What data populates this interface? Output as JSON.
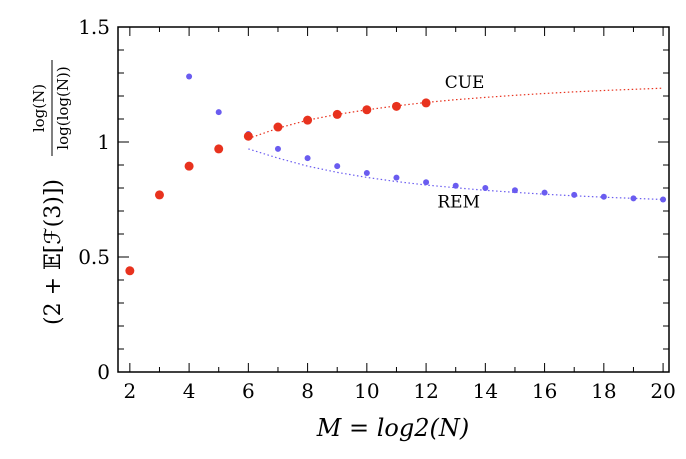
{
  "chart_data": {
    "type": "scatter",
    "xlabel": "M = log2(N)",
    "ylabel": "(2 + E[F(3)]) log(N)/log(log(N))",
    "ylabel_prefix": "(2 + 𝔼[ℱ(3)])",
    "ylabel_frac_num": "log(N)",
    "ylabel_frac_den": "log(log(N))",
    "xlim": [
      1.6,
      20.2
    ],
    "ylim": [
      0,
      1.5
    ],
    "x_ticks": [
      2,
      4,
      6,
      8,
      10,
      12,
      14,
      16,
      18,
      20
    ],
    "y_ticks": [
      0,
      0.5,
      1,
      1.5
    ],
    "x_tick_labels": [
      "2",
      "4",
      "6",
      "8",
      "10",
      "12",
      "14",
      "16",
      "18",
      "20"
    ],
    "y_tick_labels": [
      "0",
      "0.5",
      "1",
      "1.5"
    ],
    "series": [
      {
        "name": "CUE",
        "color": "#e8321e",
        "x": [
          2,
          3,
          4,
          5,
          6,
          7,
          8,
          9,
          10,
          11,
          12
        ],
        "values": [
          0.44,
          0.77,
          0.895,
          0.97,
          1.025,
          1.065,
          1.095,
          1.12,
          1.14,
          1.155,
          1.17
        ]
      },
      {
        "name": "REM",
        "color": "#6a5cf0",
        "x": [
          4,
          5,
          6,
          7,
          8,
          9,
          10,
          11,
          12,
          13,
          14,
          15,
          16,
          17,
          18,
          19,
          20
        ],
        "values": [
          1.285,
          1.13,
          1.035,
          0.97,
          0.93,
          0.895,
          0.865,
          0.845,
          0.825,
          0.81,
          0.8,
          0.79,
          0.78,
          0.77,
          0.762,
          0.755,
          0.75
        ]
      }
    ],
    "fits": [
      {
        "name": "CUE-fit",
        "color": "#e8321e",
        "x": [
          6,
          7,
          8,
          9,
          10,
          11,
          12,
          13,
          14,
          15,
          16,
          17,
          18,
          19,
          20
        ],
        "values": [
          1.015,
          1.06,
          1.095,
          1.12,
          1.14,
          1.157,
          1.172,
          1.184,
          1.194,
          1.203,
          1.211,
          1.218,
          1.224,
          1.229,
          1.234
        ]
      },
      {
        "name": "REM-fit",
        "color": "#6a5cf0",
        "x": [
          6,
          7,
          8,
          9,
          10,
          11,
          12,
          13,
          14,
          15,
          16,
          17,
          18,
          19,
          20
        ],
        "values": [
          0.97,
          0.93,
          0.895,
          0.868,
          0.846,
          0.828,
          0.813,
          0.801,
          0.79,
          0.781,
          0.773,
          0.766,
          0.76,
          0.755,
          0.75
        ]
      }
    ],
    "annotations": [
      {
        "text": "CUE",
        "x": 13.3,
        "y": 1.235
      },
      {
        "text": "REM",
        "x": 13.1,
        "y": 0.715
      }
    ]
  }
}
